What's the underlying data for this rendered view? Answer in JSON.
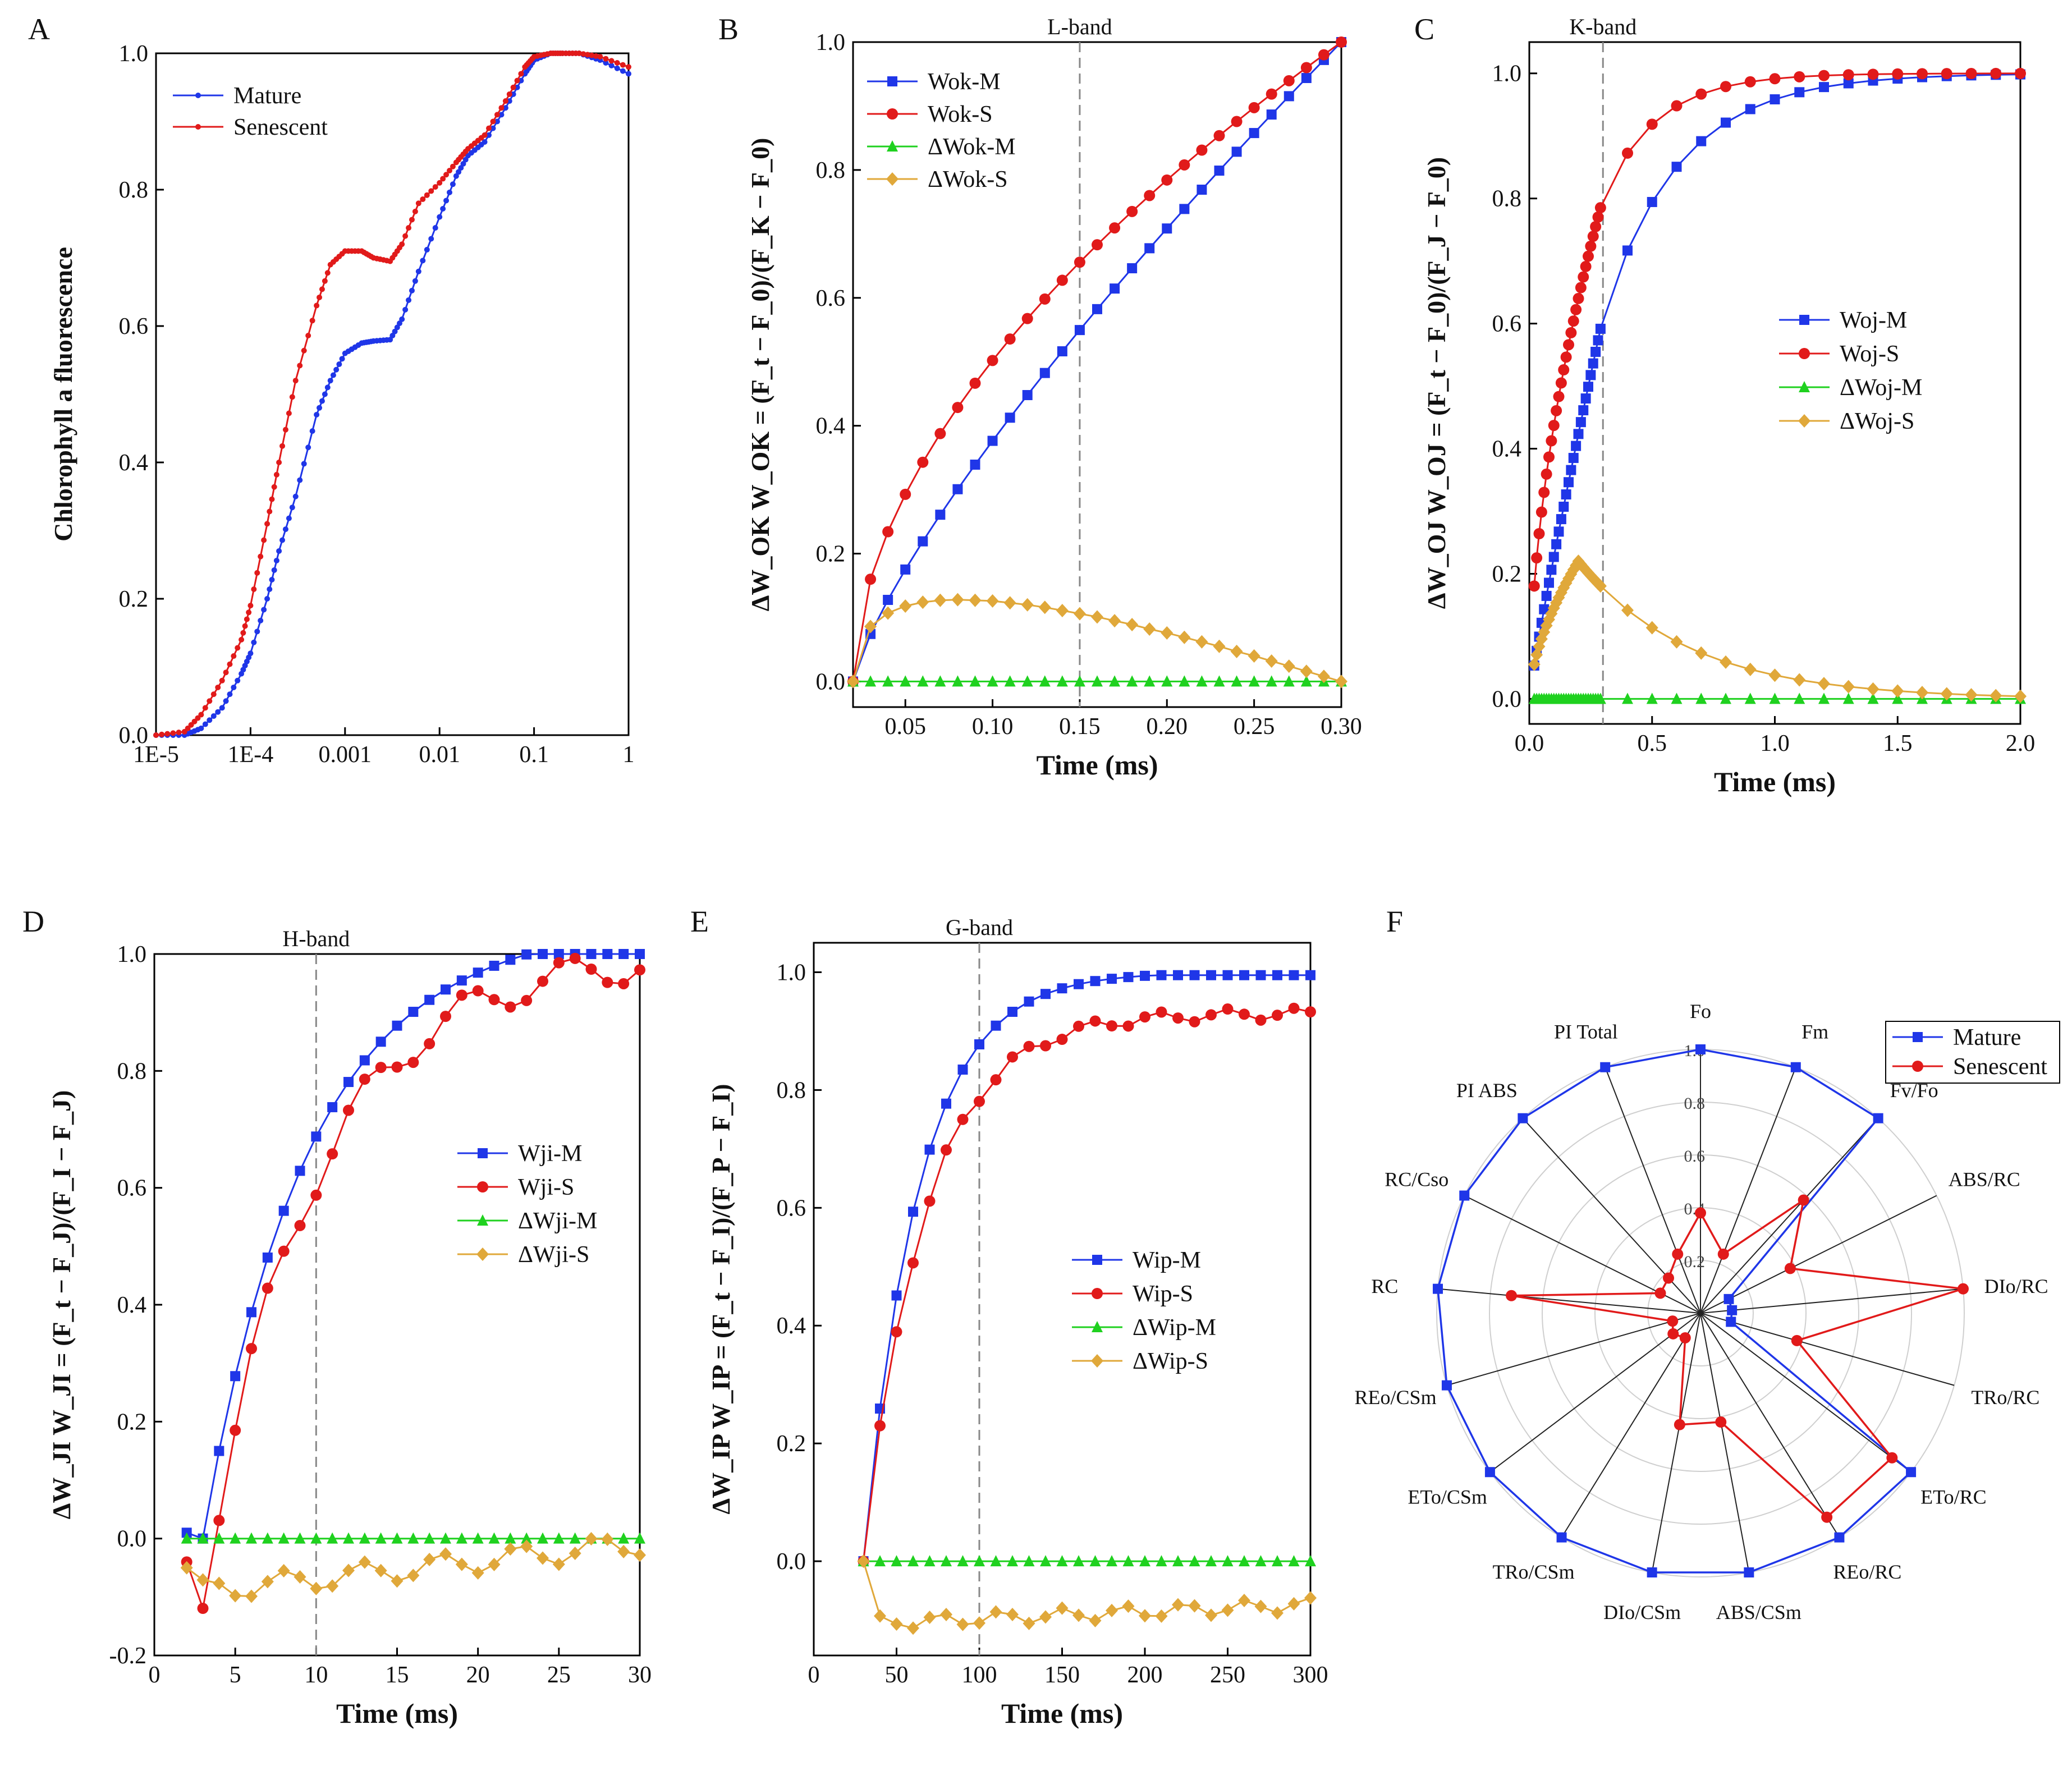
{
  "colors": {
    "mature": "#1f36e8",
    "senescent": "#e11a1a",
    "dm": "#1fd11f",
    "ds": "#e0a83a",
    "grid": "#cfcfcf",
    "band": "#888888"
  },
  "chart_data": [
    {
      "panel": "A",
      "type": "line",
      "xscale": "log",
      "ylabel": "Chlorophyll a fluorescence",
      "xlim": [
        1e-05,
        1
      ],
      "ylim": [
        0,
        1
      ],
      "xticks": [
        1e-05,
        0.0001,
        0.001,
        0.01,
        0.1,
        1
      ],
      "xticklabels": [
        "1E-5",
        "1E-4",
        "0.001",
        "0.01",
        "0.1",
        "1"
      ],
      "yticks": [
        0,
        0.2,
        0.4,
        0.6,
        0.8,
        1.0
      ],
      "yticklabels": [
        "0.0",
        "0.2",
        "0.4",
        "0.6",
        "0.8",
        "1.0"
      ],
      "legend": [
        "Mature",
        "Senescent"
      ],
      "series": [
        {
          "name": "Mature",
          "color": "mature",
          "marker": "dot",
          "x": [
            1e-05,
            2e-05,
            3e-05,
            5e-05,
            8e-05,
            0.0001,
            0.00015,
            0.0002,
            0.0003,
            0.0005,
            0.0007,
            0.001,
            0.0015,
            0.002,
            0.003,
            0.004,
            0.006,
            0.01,
            0.015,
            0.02,
            0.03,
            0.05,
            0.08,
            0.1,
            0.15,
            0.2,
            0.3,
            0.5,
            1
          ],
          "y": [
            0,
            0,
            0.01,
            0.04,
            0.09,
            0.12,
            0.2,
            0.27,
            0.35,
            0.47,
            0.52,
            0.56,
            0.575,
            0.578,
            0.58,
            0.61,
            0.68,
            0.76,
            0.82,
            0.85,
            0.87,
            0.92,
            0.97,
            0.99,
            1.0,
            1.0,
            1.0,
            0.99,
            0.97
          ]
        },
        {
          "name": "Senescent",
          "color": "senescent",
          "marker": "dot",
          "x": [
            1e-05,
            2e-05,
            3e-05,
            5e-05,
            8e-05,
            0.0001,
            0.00015,
            0.0002,
            0.0003,
            0.0005,
            0.0007,
            0.001,
            0.0015,
            0.002,
            0.003,
            0.004,
            0.006,
            0.01,
            0.015,
            0.02,
            0.03,
            0.05,
            0.08,
            0.1,
            0.15,
            0.2,
            0.3,
            0.5,
            1
          ],
          "y": [
            0,
            0.005,
            0.03,
            0.08,
            0.14,
            0.19,
            0.31,
            0.4,
            0.52,
            0.63,
            0.69,
            0.71,
            0.71,
            0.7,
            0.695,
            0.72,
            0.78,
            0.81,
            0.84,
            0.86,
            0.88,
            0.93,
            0.98,
            0.995,
            1.0,
            1.0,
            1.0,
            0.995,
            0.98
          ]
        }
      ]
    },
    {
      "panel": "B",
      "type": "line",
      "ylabel": "ΔW_OK   W_OK = (F_t − F_0)/(F_K − F_0)",
      "xlabel": "Time (ms)",
      "xlim": [
        0.02,
        0.3
      ],
      "ylim": [
        -0.04,
        1.0
      ],
      "xticks": [
        0.05,
        0.1,
        0.15,
        0.2,
        0.25,
        0.3
      ],
      "xticklabels": [
        "0.05",
        "0.10",
        "0.15",
        "0.20",
        "0.25",
        "0.30"
      ],
      "yticks": [
        0,
        0.2,
        0.4,
        0.6,
        0.8,
        1.0
      ],
      "yticklabels": [
        "0.0",
        "0.2",
        "0.4",
        "0.6",
        "0.8",
        "1.0"
      ],
      "band": {
        "label": "L-band",
        "x": 0.15
      },
      "legend": [
        "Wok-M",
        "Wok-S",
        "ΔWok-M",
        "ΔWok-S"
      ],
      "series": [
        {
          "name": "Wok-M",
          "color": "mature",
          "marker": "square",
          "fn": "linear-m"
        },
        {
          "name": "Wok-S",
          "color": "senescent",
          "marker": "circle",
          "fn": "curve-s"
        },
        {
          "name": "ΔWok-M",
          "color": "dm",
          "marker": "triangle",
          "fn": "zero"
        },
        {
          "name": "ΔWok-S",
          "color": "ds",
          "marker": "diamond",
          "fn": "hump"
        }
      ]
    },
    {
      "panel": "C",
      "type": "line",
      "ylabel": "ΔW_OJ   W_OJ = (F_t − F_0)/(F_J − F_0)",
      "xlabel": "Time (ms)",
      "xlim": [
        0,
        2.0
      ],
      "ylim": [
        -0.04,
        1.05
      ],
      "xticks": [
        0,
        0.5,
        1.0,
        1.5,
        2.0
      ],
      "xticklabels": [
        "0.0",
        "0.5",
        "1.0",
        "1.5",
        "2.0"
      ],
      "yticks": [
        0,
        0.2,
        0.4,
        0.6,
        0.8,
        1.0
      ],
      "yticklabels": [
        "0.0",
        "0.2",
        "0.4",
        "0.6",
        "0.8",
        "1.0"
      ],
      "band": {
        "label": "K-band",
        "x": 0.3
      },
      "legend": [
        "Woj-M",
        "Woj-S",
        "ΔWoj-M",
        "ΔWoj-S"
      ]
    },
    {
      "panel": "D",
      "type": "line",
      "ylabel": "ΔW_JI   W_JI = (F_t − F_J)/(F_I − F_J)",
      "xlabel": "Time (ms)",
      "xlim": [
        0,
        30
      ],
      "ylim": [
        -0.2,
        1.0
      ],
      "xticks": [
        0,
        5,
        10,
        15,
        20,
        25,
        30
      ],
      "xticklabels": [
        "0",
        "5",
        "10",
        "15",
        "20",
        "25",
        "30"
      ],
      "yticks": [
        -0.2,
        0,
        0.2,
        0.4,
        0.6,
        0.8,
        1.0
      ],
      "yticklabels": [
        "-0.2",
        "0.0",
        "0.2",
        "0.4",
        "0.6",
        "0.8",
        "1.0"
      ],
      "band": {
        "label": "H-band",
        "x": 10
      },
      "legend": [
        "Wji-M",
        "Wji-S",
        "ΔWji-M",
        "ΔWji-S"
      ]
    },
    {
      "panel": "E",
      "type": "line",
      "ylabel": "ΔW_IP   W_IP = (F_t − F_I)/(F_P − F_I)",
      "xlabel": "Time (ms)",
      "xlim": [
        0,
        300
      ],
      "ylim": [
        -0.16,
        1.05
      ],
      "xticks": [
        0,
        50,
        100,
        150,
        200,
        250,
        300
      ],
      "xticklabels": [
        "0",
        "50",
        "100",
        "150",
        "200",
        "250",
        "300"
      ],
      "yticks": [
        0,
        0.2,
        0.4,
        0.6,
        0.8,
        1.0
      ],
      "yticklabels": [
        "0.0",
        "0.2",
        "0.4",
        "0.6",
        "0.8",
        "1.0"
      ],
      "band": {
        "label": "G-band",
        "x": 100
      },
      "legend": [
        "Wip-M",
        "Wip-S",
        "ΔWip-M",
        "ΔWip-S"
      ]
    },
    {
      "panel": "F",
      "type": "radar",
      "axes": [
        "Fo",
        "Fm",
        "Fv/Fo",
        "ABS/RC",
        "DIo/RC",
        "TRo/RC",
        "ETo/RC",
        "REo/RC",
        "ABS/CSm",
        "DIo/CSm",
        "TRo/CSm",
        "ETo/CSm",
        "REo/CSm",
        "RC",
        "RC/Cso",
        "PI ABS",
        "PI Total"
      ],
      "max": 1.0,
      "rings": [
        "0.2",
        "0.4",
        "0.6",
        "0.8",
        "1.0"
      ],
      "legend": [
        "Mature",
        "Senescent"
      ],
      "series": [
        {
          "name": "Mature",
          "color": "mature",
          "values": [
            1,
            1,
            1,
            0.12,
            0.12,
            0.12,
            1,
            1,
            1,
            1,
            1,
            1,
            1,
            1,
            1,
            1,
            1
          ]
        },
        {
          "name": "Senescent",
          "color": "senescent",
          "values": [
            0.38,
            0.24,
            0.58,
            0.38,
            1.0,
            0.38,
            0.91,
            0.91,
            0.42,
            0.43,
            0.11,
            0.13,
            0.11,
            0.72,
            0.17,
            0.18,
            0.24
          ]
        }
      ]
    }
  ]
}
